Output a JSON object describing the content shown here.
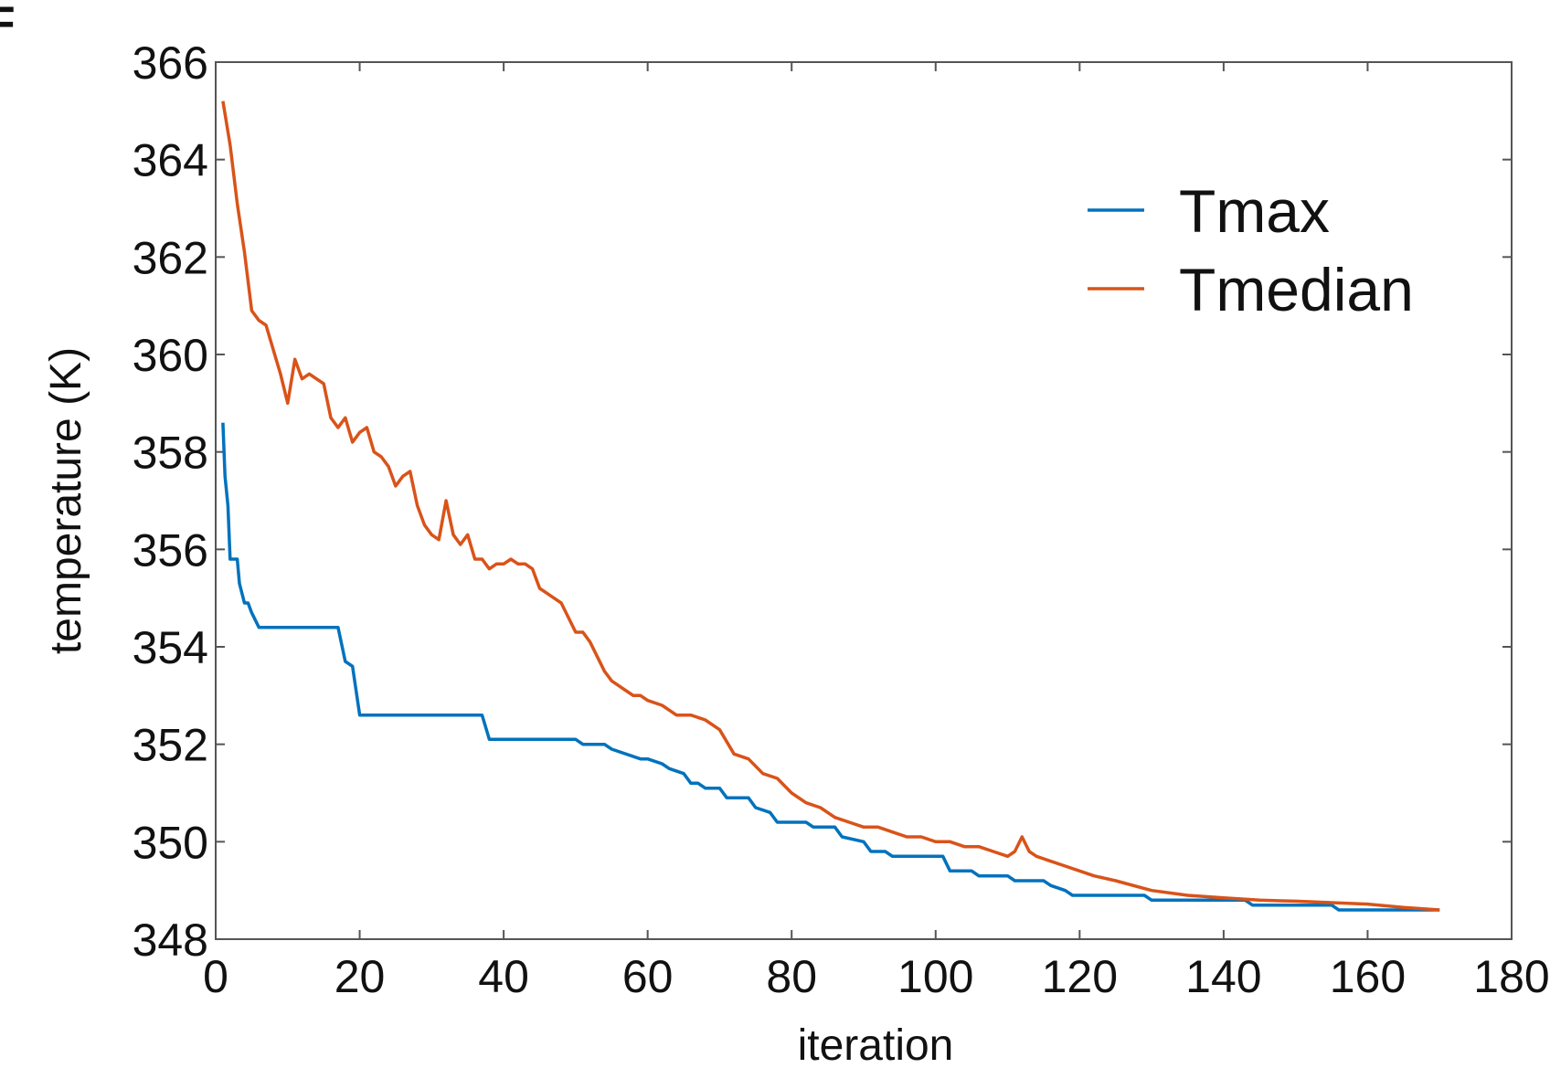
{
  "chart_data": {
    "type": "line",
    "title": "",
    "panel_letter": "F",
    "xlabel": "iteration",
    "ylabel": "temperature (K)",
    "xlim": [
      0,
      180
    ],
    "ylim": [
      348,
      366
    ],
    "xticks": [
      0,
      20,
      40,
      60,
      80,
      100,
      120,
      140,
      160,
      180
    ],
    "yticks": [
      348,
      350,
      352,
      354,
      356,
      358,
      360,
      362,
      364,
      366
    ],
    "grid": false,
    "legend_position": "top-right",
    "series": [
      {
        "name": "Tmax",
        "color": "#0072BD",
        "x": [
          1,
          1.3,
          1.7,
          2,
          2.3,
          3,
          3.3,
          4,
          4.5,
          5,
          6,
          17,
          18,
          19,
          20,
          37,
          38,
          50,
          51,
          54,
          55,
          59,
          60,
          62,
          63,
          65,
          66,
          67,
          68,
          70,
          71,
          74,
          75,
          77,
          78,
          82,
          83,
          86,
          87,
          90,
          91,
          93,
          94,
          101,
          102,
          105,
          106,
          110,
          111,
          115,
          116,
          118,
          119,
          123,
          124,
          129,
          130,
          135,
          136,
          143,
          144,
          155,
          156,
          160,
          161,
          170
        ],
        "y": [
          358.6,
          357.5,
          356.9,
          355.8,
          355.8,
          355.8,
          355.3,
          354.9,
          354.9,
          354.7,
          354.4,
          354.4,
          353.7,
          353.6,
          352.6,
          352.6,
          352.1,
          352.1,
          352.0,
          352.0,
          351.9,
          351.7,
          351.7,
          351.6,
          351.5,
          351.4,
          351.2,
          351.2,
          351.1,
          351.1,
          350.9,
          350.9,
          350.7,
          350.6,
          350.4,
          350.4,
          350.3,
          350.3,
          350.1,
          350.0,
          349.8,
          349.8,
          349.7,
          349.7,
          349.4,
          349.4,
          349.3,
          349.3,
          349.2,
          349.2,
          349.1,
          349.0,
          348.9,
          348.9,
          348.9,
          348.9,
          348.8,
          348.8,
          348.8,
          348.8,
          348.7,
          348.7,
          348.6,
          348.6,
          348.6,
          348.6
        ]
      },
      {
        "name": "Tmedian",
        "color": "#D95319",
        "x": [
          1,
          2,
          3,
          4,
          5,
          6,
          7,
          8,
          9,
          10,
          11,
          12,
          13,
          14,
          15,
          16,
          17,
          18,
          19,
          20,
          21,
          22,
          23,
          24,
          25,
          26,
          27,
          28,
          29,
          30,
          31,
          32,
          33,
          34,
          35,
          36,
          37,
          38,
          39,
          40,
          41,
          42,
          43,
          44,
          45,
          46,
          47,
          48,
          49,
          50,
          51,
          52,
          53,
          54,
          55,
          56,
          57,
          58,
          59,
          60,
          62,
          64,
          66,
          68,
          70,
          72,
          74,
          76,
          78,
          80,
          82,
          84,
          86,
          88,
          90,
          92,
          94,
          96,
          98,
          100,
          102,
          104,
          106,
          108,
          110,
          111,
          112,
          113,
          114,
          116,
          118,
          120,
          122,
          125,
          130,
          135,
          140,
          145,
          150,
          155,
          160,
          165,
          170
        ],
        "y": [
          365.2,
          364.3,
          363.1,
          362.1,
          360.9,
          360.7,
          360.6,
          360.1,
          359.6,
          359.0,
          359.9,
          359.5,
          359.6,
          359.5,
          359.4,
          358.7,
          358.5,
          358.7,
          358.2,
          358.4,
          358.5,
          358.0,
          357.9,
          357.7,
          357.3,
          357.5,
          357.6,
          356.9,
          356.5,
          356.3,
          356.2,
          357.0,
          356.3,
          356.1,
          356.3,
          355.8,
          355.8,
          355.6,
          355.7,
          355.7,
          355.8,
          355.7,
          355.7,
          355.6,
          355.2,
          355.1,
          355.0,
          354.9,
          354.6,
          354.3,
          354.3,
          354.1,
          353.8,
          353.5,
          353.3,
          353.2,
          353.1,
          353.0,
          353.0,
          352.9,
          352.8,
          352.6,
          352.6,
          352.5,
          352.3,
          351.8,
          351.7,
          351.4,
          351.3,
          351.0,
          350.8,
          350.7,
          350.5,
          350.4,
          350.3,
          350.3,
          350.2,
          350.1,
          350.1,
          350.0,
          350.0,
          349.9,
          349.9,
          349.8,
          349.7,
          349.8,
          350.1,
          349.8,
          349.7,
          349.6,
          349.5,
          349.4,
          349.3,
          349.2,
          349.0,
          348.9,
          348.85,
          348.8,
          348.78,
          348.75,
          348.72,
          348.65,
          348.6
        ]
      }
    ]
  }
}
